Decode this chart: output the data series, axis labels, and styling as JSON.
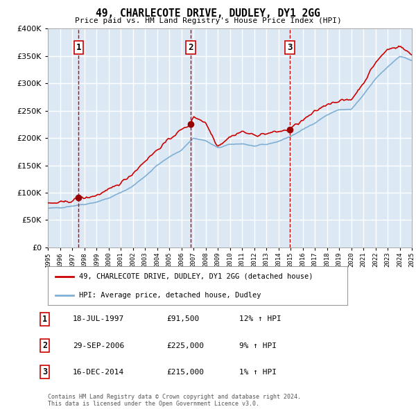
{
  "title": "49, CHARLECOTE DRIVE, DUDLEY, DY1 2GG",
  "subtitle": "Price paid vs. HM Land Registry's House Price Index (HPI)",
  "x_start_year": 1995,
  "x_end_year": 2025,
  "y_min": 0,
  "y_max": 400000,
  "y_ticks": [
    0,
    50000,
    100000,
    150000,
    200000,
    250000,
    300000,
    350000,
    400000
  ],
  "plot_bg_color": "#dce9f5",
  "grid_color": "#ffffff",
  "red_line_color": "#cc0000",
  "blue_line_color": "#7fafd4",
  "transaction_marker_color": "#990000",
  "vline_color": "#cc0000",
  "transactions": [
    {
      "date_year": 1997.54,
      "price": 91500,
      "label": "1"
    },
    {
      "date_year": 2006.75,
      "price": 225000,
      "label": "2"
    },
    {
      "date_year": 2014.96,
      "price": 215000,
      "label": "3"
    }
  ],
  "legend_entries": [
    "49, CHARLECOTE DRIVE, DUDLEY, DY1 2GG (detached house)",
    "HPI: Average price, detached house, Dudley"
  ],
  "table_rows": [
    {
      "num": "1",
      "date": "18-JUL-1997",
      "price": "£91,500",
      "hpi": "12% ↑ HPI"
    },
    {
      "num": "2",
      "date": "29-SEP-2006",
      "price": "£225,000",
      "hpi": "9% ↑ HPI"
    },
    {
      "num": "3",
      "date": "16-DEC-2014",
      "price": "£215,000",
      "hpi": "1% ↑ HPI"
    }
  ],
  "footer": "Contains HM Land Registry data © Crown copyright and database right 2024.\nThis data is licensed under the Open Government Licence v3.0."
}
